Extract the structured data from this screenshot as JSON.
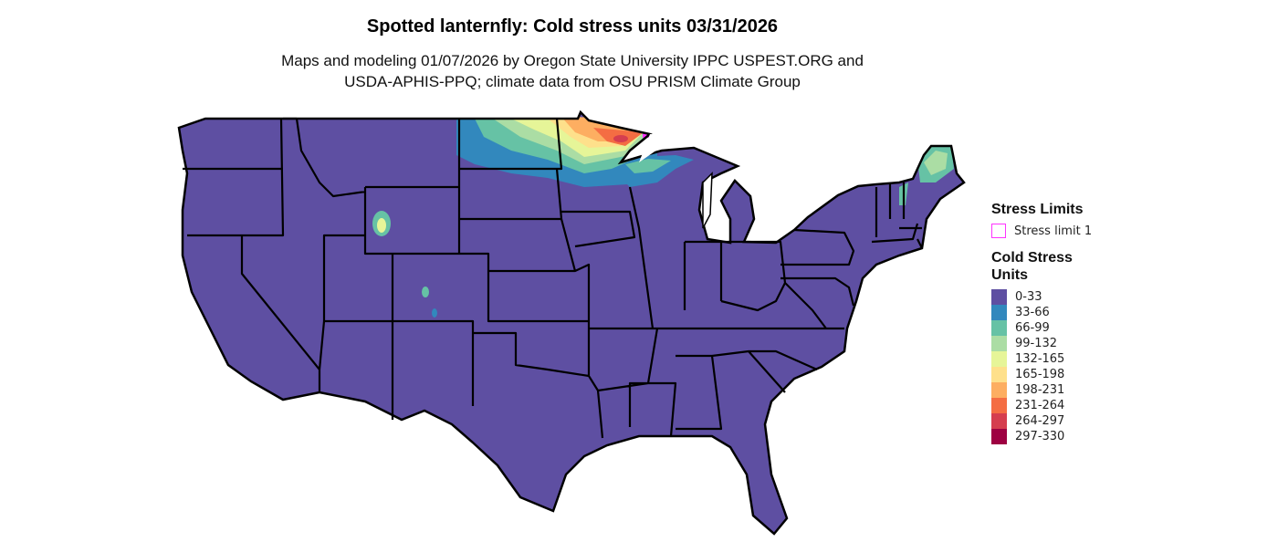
{
  "title": "Spotted lanternfly: Cold stress units 03/31/2026",
  "subtitle_line1": "Maps and modeling 01/07/2026 by Oregon State University IPPC USPEST.ORG and",
  "subtitle_line2": "USDA-APHIS-PPQ; climate data from OSU PRISM Climate Group",
  "legend": {
    "stress_limits_title": "Stress Limits",
    "stress_limit_label": "Stress limit 1",
    "stress_limit_color": "#ff33ff",
    "units_title": "Cold Stress Units",
    "items": [
      {
        "label": "0-33",
        "color": "#5e4fa2"
      },
      {
        "label": "33-66",
        "color": "#3288bd"
      },
      {
        "label": "66-99",
        "color": "#66c2a5"
      },
      {
        "label": "99-132",
        "color": "#abdda4"
      },
      {
        "label": "132-165",
        "color": "#e6f598"
      },
      {
        "label": "165-198",
        "color": "#fee08b"
      },
      {
        "label": "198-231",
        "color": "#fdae61"
      },
      {
        "label": "231-264",
        "color": "#f46d43"
      },
      {
        "label": "264-297",
        "color": "#d53e4f"
      },
      {
        "label": "297-330",
        "color": "#9e0142"
      }
    ]
  }
}
